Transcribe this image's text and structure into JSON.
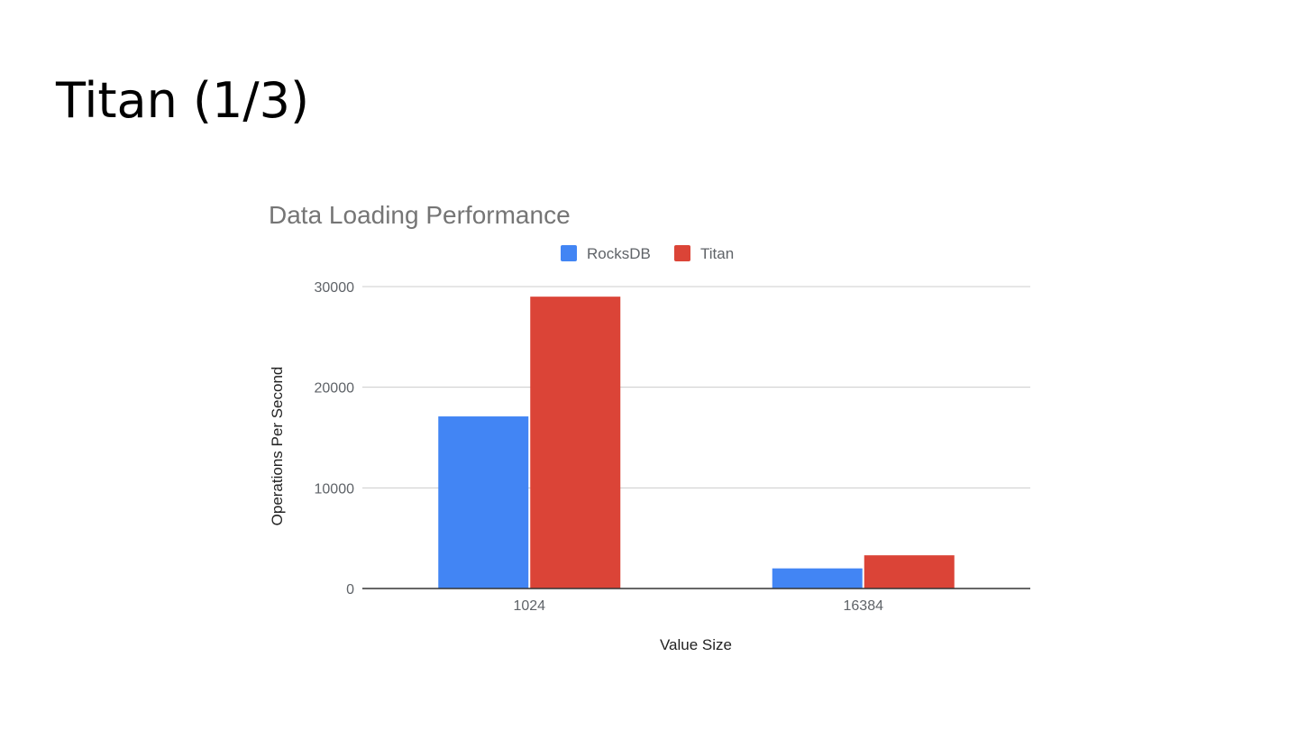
{
  "slide": {
    "title": "Titan (1/3)"
  },
  "chart_data": {
    "type": "bar",
    "title": "Data Loading Performance",
    "xlabel": "Value Size",
    "ylabel": "Operations Per Second",
    "categories": [
      "1024",
      "16384"
    ],
    "series": [
      {
        "name": "RocksDB",
        "values": [
          17100,
          2000
        ],
        "color": "#4285f4"
      },
      {
        "name": "Titan",
        "values": [
          29000,
          3300
        ],
        "color": "#db4437"
      }
    ],
    "ylim": [
      0,
      30000
    ],
    "yticks": [
      0,
      10000,
      20000,
      30000
    ],
    "ytick_labels": [
      "0",
      "10000",
      "20000",
      "30000"
    ],
    "grid": true,
    "legend_position": "top"
  }
}
